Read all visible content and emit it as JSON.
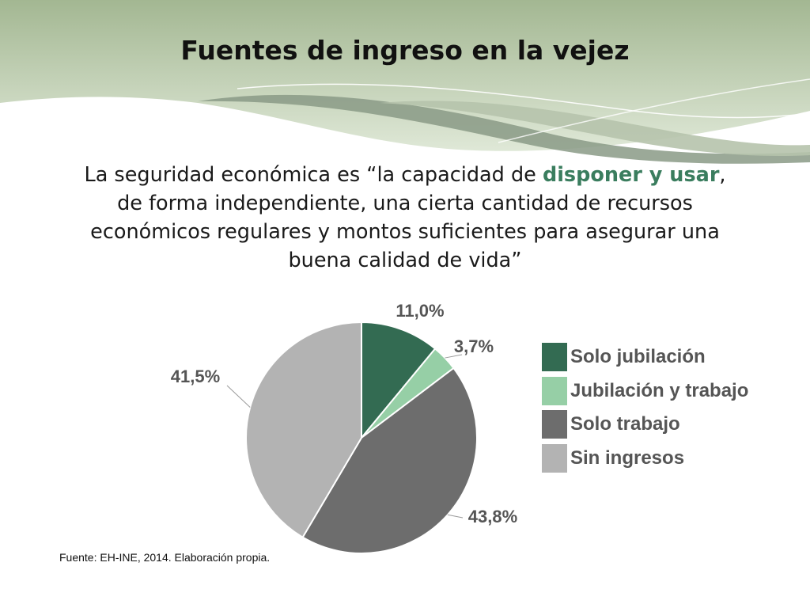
{
  "slide": {
    "title": "Fuentes de ingreso en la vejez",
    "quote": {
      "before": "La seguridad económica es “la capacidad de ",
      "highlight": "disponer y usar",
      "after": ", de forma independiente, una cierta cantidad de recursos económicos regulares y montos suficientes para asegurar una buena calidad de vida”",
      "highlight_color": "#3a7d5e"
    },
    "source": "Fuente: EH-INE, 2014. Elaboración propia."
  },
  "chart_data": {
    "type": "pie",
    "categories": [
      "Solo jubilación",
      "Jubilación y trabajo",
      "Solo trabajo",
      "Sin ingresos"
    ],
    "values": [
      11.0,
      3.7,
      43.8,
      41.5
    ],
    "data_labels": [
      "11,0%",
      "3,7%",
      "43,8%",
      "41,5%"
    ],
    "colors": [
      "#336b52",
      "#96cfa6",
      "#6d6d6d",
      "#b3b3b3"
    ],
    "start_angle": "12 o'clock",
    "direction": "clockwise",
    "legend_position": "right"
  }
}
